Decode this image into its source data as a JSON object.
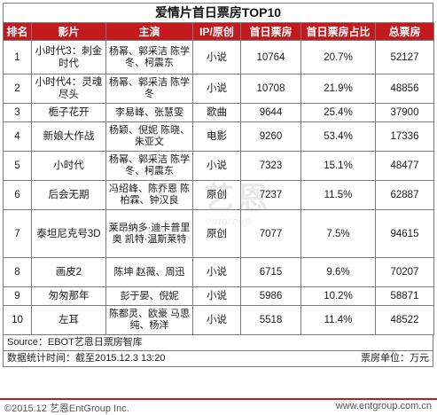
{
  "title": "爱情片首日票房TOP10",
  "headers": [
    "排名",
    "影片",
    "主演",
    "IP/原创",
    "首日票房",
    "首日票房占比",
    "总票房"
  ],
  "rows": [
    {
      "rank": "1",
      "film": "小时代3：刺金时代",
      "cast": "杨幂、郭采洁 陈学冬、柯震东",
      "ip": "小说",
      "first_day": "10764",
      "share": "20.7%",
      "total": "52127"
    },
    {
      "rank": "2",
      "film": "小时代4：灵魂尽头",
      "cast": "杨幂、郭采洁 陈学冬",
      "ip": "小说",
      "first_day": "10708",
      "share": "21.9%",
      "total": "48856"
    },
    {
      "rank": "3",
      "film": "栀子花开",
      "cast": "李易峰、张慧雯",
      "ip": "歌曲",
      "first_day": "9644",
      "share": "25.4%",
      "total": "37900"
    },
    {
      "rank": "4",
      "film": "新娘大作战",
      "cast": "杨颖、倪妮 陈晓、朱亚文",
      "ip": "电影",
      "first_day": "9260",
      "share": "53.4%",
      "total": "17336"
    },
    {
      "rank": "5",
      "film": "小时代",
      "cast": "杨幂、郭采洁 陈学冬、柯震东",
      "ip": "小说",
      "first_day": "7323",
      "share": "15.1%",
      "total": "48477"
    },
    {
      "rank": "6",
      "film": "后会无期",
      "cast": "冯绍峰、陈乔恩 陈柏霖、钟汉良",
      "ip": "原创",
      "first_day": "7237",
      "share": "11.5%",
      "total": "62887"
    },
    {
      "rank": "7",
      "film": "泰坦尼克号3D",
      "cast": "莱昂纳多·迪卡普里奥 凯特·温斯莱特",
      "ip": "原创",
      "first_day": "7077",
      "share": "7.5%",
      "total": "94615"
    },
    {
      "rank": "8",
      "film": "画皮2",
      "cast": "陈坤 赵薇、周迅",
      "ip": "小说",
      "first_day": "6715",
      "share": "9.6%",
      "total": "70207"
    },
    {
      "rank": "9",
      "film": "匆匆那年",
      "cast": "彭于晏、倪妮",
      "ip": "小说",
      "first_day": "5986",
      "share": "10.2%",
      "total": "58871"
    },
    {
      "rank": "10",
      "film": "左耳",
      "cast": "陈都灵、欧豪 马思纯、杨洋",
      "ip": "小说",
      "first_day": "5518",
      "share": "11.4%",
      "total": "48522"
    }
  ],
  "footer": {
    "source": "Source：EBOT艺恩日票房智库",
    "stat_time": "数据统计时间：截至2015.12.3 13:20",
    "unit": "票房单位：万元"
  },
  "brand": {
    "left": "©2015.12 艺恩EntGroup Inc.",
    "right": "www.entgroup.com.cn"
  },
  "watermark": {
    "text": "艺恩",
    "sub": "entgroup"
  },
  "colors": {
    "header_bg": "#c41a1d",
    "header_text": "#ffffff",
    "border": "#7a7a7a"
  }
}
